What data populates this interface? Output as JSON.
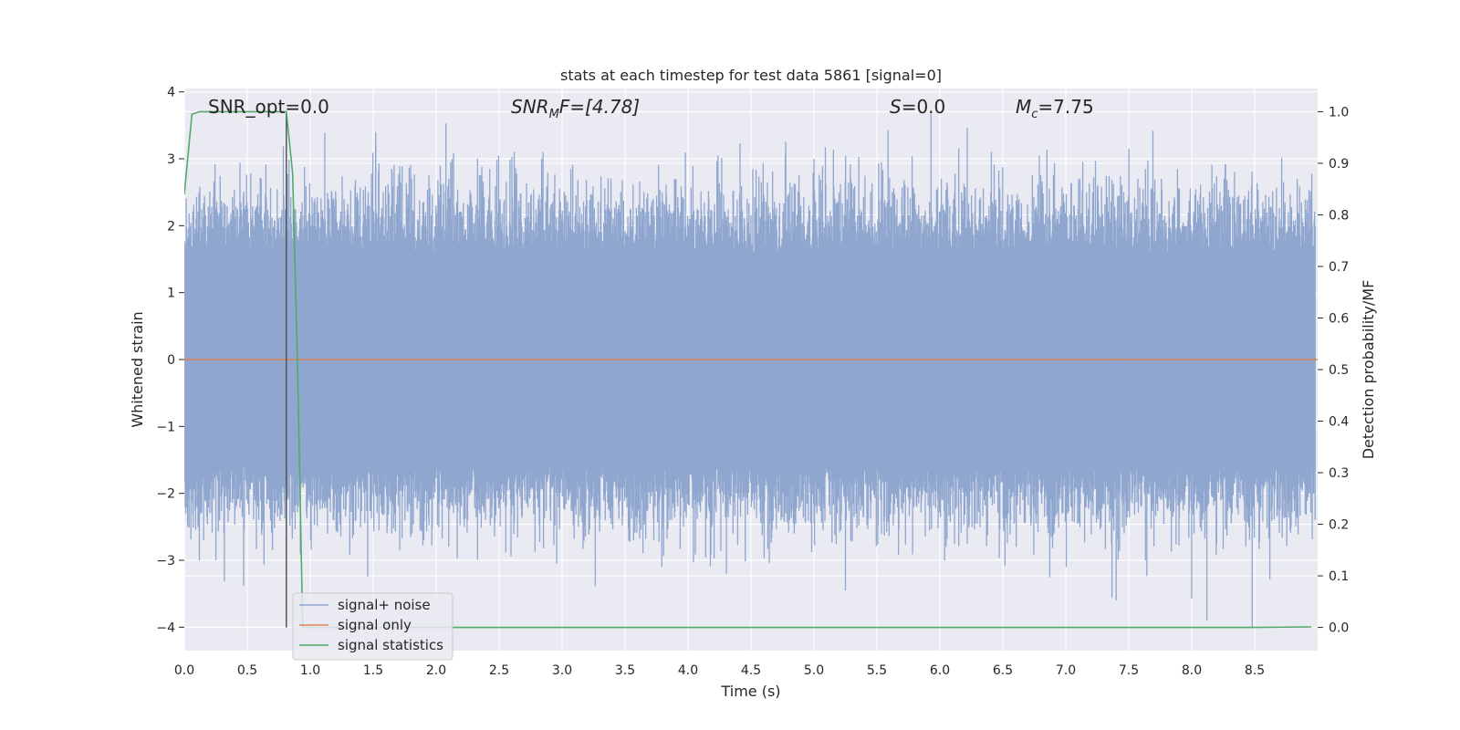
{
  "chart_data": {
    "type": "line",
    "title": "stats at each timestep for test data 5861 [signal=0]",
    "xlabel": "Time (s)",
    "ylabel_left": "Whitened strain",
    "ylabel_right": "Detection probability/MF",
    "xlim": [
      0.0,
      9.0
    ],
    "ylim_left": [
      -4.35,
      4.05
    ],
    "ylim_right": [
      -0.045,
      1.045
    ],
    "xticks": [
      "0.0",
      "0.5",
      "1.0",
      "1.5",
      "2.0",
      "2.5",
      "3.0",
      "3.5",
      "4.0",
      "4.5",
      "5.0",
      "5.5",
      "6.0",
      "6.5",
      "7.0",
      "7.5",
      "8.0",
      "8.5"
    ],
    "yticks_left": [
      "4",
      "3",
      "2",
      "1",
      "0",
      "−1",
      "−2",
      "−3",
      "−4"
    ],
    "yticks_right": [
      "1.0",
      "0.9",
      "0.8",
      "0.7",
      "0.6",
      "0.5",
      "0.4",
      "0.3",
      "0.2",
      "0.1",
      "0.0"
    ],
    "grid": true,
    "legend_position": "lower-left",
    "annotations": {
      "snr_opt": "SNR_opt=0.0",
      "snr_mf_base": "SNR",
      "snr_mf_sub": "M",
      "snr_mf_rest": "F=[4.78]",
      "s_stat_italic": "S",
      "s_stat_rest": "=0.0",
      "mc_base": "M",
      "mc_sub": "c",
      "mc_rest": "=7.75"
    },
    "marker_line_x": 0.81,
    "series": [
      {
        "name": "signal+ noise",
        "color": "#8fa6cf",
        "axis": "left",
        "description_values": {
          "typical_abs_amplitude": 1.6,
          "max": 3.67,
          "min": -4.0
        }
      },
      {
        "name": "signal only",
        "color": "#dd8452",
        "axis": "left",
        "x": [
          0.0,
          9.0
        ],
        "y": [
          0.0,
          0.0
        ]
      },
      {
        "name": "signal statistics",
        "color": "#55a868",
        "axis": "right",
        "x": [
          0.0,
          0.06,
          0.12,
          0.2,
          0.4,
          0.6,
          0.81,
          0.86,
          0.9,
          0.94,
          1.0,
          1.5,
          2.0,
          3.0,
          4.0,
          5.0,
          6.0,
          7.0,
          8.0,
          8.5,
          8.95
        ],
        "y": [
          0.84,
          0.995,
          1.0,
          1.0,
          1.0,
          1.0,
          1.0,
          0.88,
          0.5,
          0.0,
          0.0,
          0.0,
          0.0,
          0.0,
          0.0,
          0.0,
          0.0,
          0.0,
          0.0,
          0.0,
          0.001
        ]
      }
    ]
  }
}
